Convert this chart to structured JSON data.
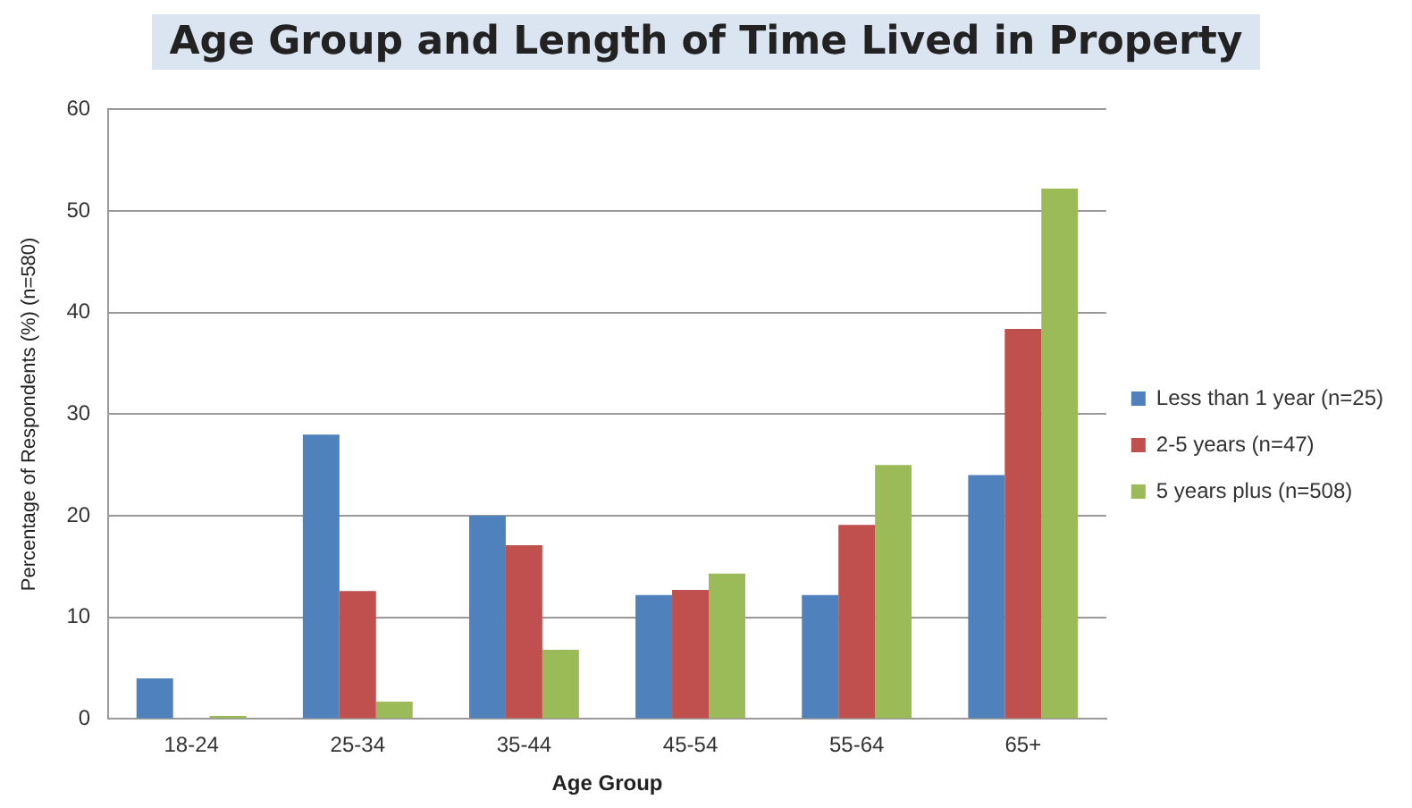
{
  "chart_data": {
    "type": "bar",
    "title": "Age Group and Length of Time Lived in Property",
    "xlabel": "Age Group",
    "ylabel": "Percentage of Respondents (%) (n=580)",
    "categories": [
      "18-24",
      "25-34",
      "35-44",
      "45-54",
      "55-64",
      "65+"
    ],
    "series": [
      {
        "name": "Less than 1 year (n=25)",
        "color": "#4f81bd",
        "values": [
          4,
          28,
          20,
          12.2,
          12.2,
          24
        ]
      },
      {
        "name": "2-5 years (n=47)",
        "color": "#c0504d",
        "values": [
          0,
          12.6,
          17.1,
          12.7,
          19.1,
          38.4
        ]
      },
      {
        "name": "5 years plus (n=508)",
        "color": "#9bbb59",
        "values": [
          0.3,
          1.7,
          6.8,
          14.3,
          25,
          52.2
        ]
      }
    ],
    "ylim": [
      0,
      60
    ],
    "yticks": [
      0,
      10,
      20,
      30,
      40,
      50,
      60
    ],
    "grid": "y",
    "legend": "right"
  }
}
